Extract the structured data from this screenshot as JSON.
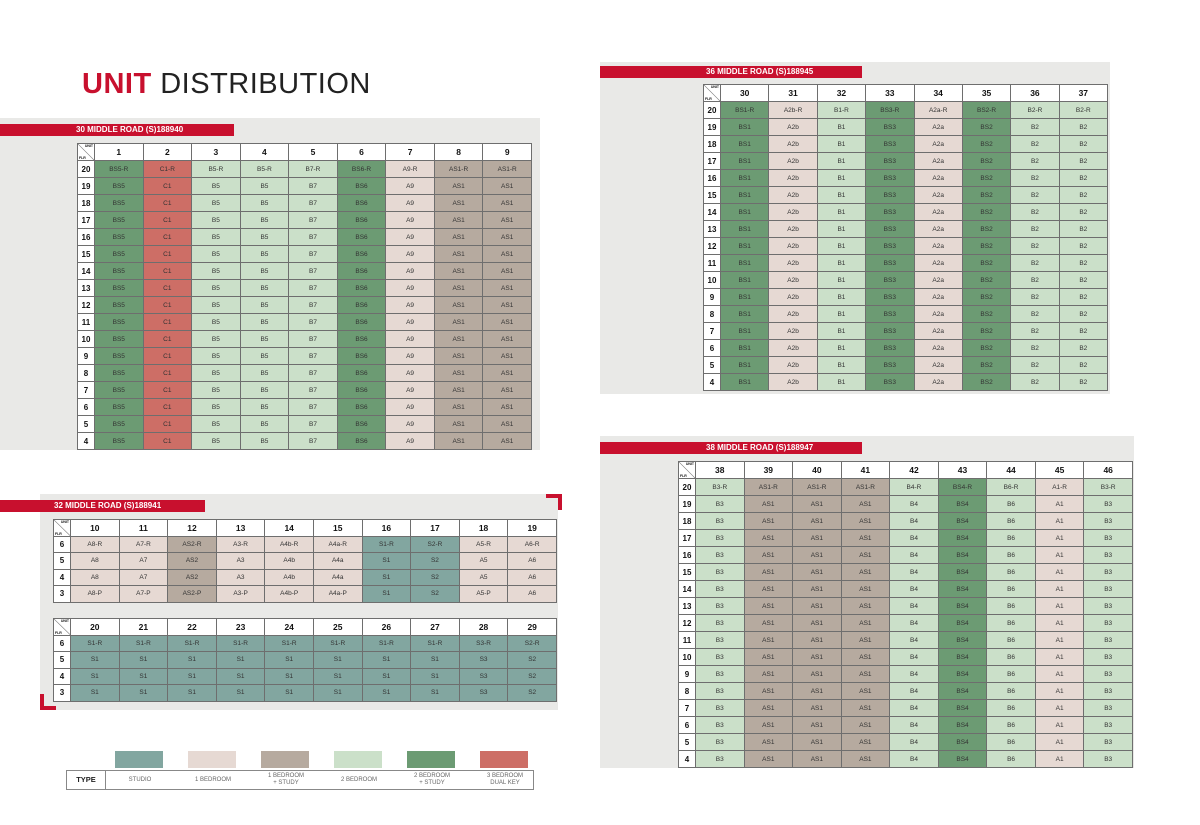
{
  "page": {
    "title_bold": "UNIT",
    "title_rest": "DISTRIBUTION"
  },
  "header_labels": {
    "unit": "UNIT",
    "flr": "FLR"
  },
  "legend": {
    "type_label": "TYPE",
    "items": [
      {
        "label": "STUDIO",
        "color": "#82a6a0"
      },
      {
        "label": "1 BEDROOM",
        "color": "#e6d9d3"
      },
      {
        "label": "1 BEDROOM\n+ STUDY",
        "color": "#b6aa9f"
      },
      {
        "label": "2 BEDROOM",
        "color": "#cbe0c9"
      },
      {
        "label": "2 BEDROOM\n+ STUDY",
        "color": "#6c9b73"
      },
      {
        "label": "3 BEDROOM\nDUAL KEY",
        "color": "#cd6e66"
      }
    ]
  },
  "blocks": [
    {
      "id": "30-middle-road",
      "label": "30 MIDDLE ROAD (S)188940",
      "units": [
        "1",
        "2",
        "3",
        "4",
        "5",
        "6",
        "7",
        "8",
        "9"
      ],
      "unit_types": [
        "twostudy",
        "three",
        "two",
        "two",
        "two",
        "twostudy",
        "one",
        "onestudy",
        "onestudy"
      ],
      "rows": [
        {
          "floor": "20",
          "cells": [
            "BS5-R",
            "C1-R",
            "B5-R",
            "B5-R",
            "B7-R",
            "BS6-R",
            "A9-R",
            "AS1-R",
            "AS1-R"
          ]
        },
        {
          "floor": "19",
          "cells": [
            "BS5",
            "C1",
            "B5",
            "B5",
            "B7",
            "BS6",
            "A9",
            "AS1",
            "AS1"
          ]
        },
        {
          "floor": "18",
          "cells": [
            "BS5",
            "C1",
            "B5",
            "B5",
            "B7",
            "BS6",
            "A9",
            "AS1",
            "AS1"
          ]
        },
        {
          "floor": "17",
          "cells": [
            "BS5",
            "C1",
            "B5",
            "B5",
            "B7",
            "BS6",
            "A9",
            "AS1",
            "AS1"
          ]
        },
        {
          "floor": "16",
          "cells": [
            "BS5",
            "C1",
            "B5",
            "B5",
            "B7",
            "BS6",
            "A9",
            "AS1",
            "AS1"
          ]
        },
        {
          "floor": "15",
          "cells": [
            "BS5",
            "C1",
            "B5",
            "B5",
            "B7",
            "BS6",
            "A9",
            "AS1",
            "AS1"
          ]
        },
        {
          "floor": "14",
          "cells": [
            "BS5",
            "C1",
            "B5",
            "B5",
            "B7",
            "BS6",
            "A9",
            "AS1",
            "AS1"
          ]
        },
        {
          "floor": "13",
          "cells": [
            "BS5",
            "C1",
            "B5",
            "B5",
            "B7",
            "BS6",
            "A9",
            "AS1",
            "AS1"
          ]
        },
        {
          "floor": "12",
          "cells": [
            "BS5",
            "C1",
            "B5",
            "B5",
            "B7",
            "BS6",
            "A9",
            "AS1",
            "AS1"
          ]
        },
        {
          "floor": "11",
          "cells": [
            "BS5",
            "C1",
            "B5",
            "B5",
            "B7",
            "BS6",
            "A9",
            "AS1",
            "AS1"
          ]
        },
        {
          "floor": "10",
          "cells": [
            "BS5",
            "C1",
            "B5",
            "B5",
            "B7",
            "BS6",
            "A9",
            "AS1",
            "AS1"
          ]
        },
        {
          "floor": "9",
          "cells": [
            "BS5",
            "C1",
            "B5",
            "B5",
            "B7",
            "BS6",
            "A9",
            "AS1",
            "AS1"
          ]
        },
        {
          "floor": "8",
          "cells": [
            "BS5",
            "C1",
            "B5",
            "B5",
            "B7",
            "BS6",
            "A9",
            "AS1",
            "AS1"
          ]
        },
        {
          "floor": "7",
          "cells": [
            "BS5",
            "C1",
            "B5",
            "B5",
            "B7",
            "BS6",
            "A9",
            "AS1",
            "AS1"
          ]
        },
        {
          "floor": "6",
          "cells": [
            "BS5",
            "C1",
            "B5",
            "B5",
            "B7",
            "BS6",
            "A9",
            "AS1",
            "AS1"
          ]
        },
        {
          "floor": "5",
          "cells": [
            "BS5",
            "C1",
            "B5",
            "B5",
            "B7",
            "BS6",
            "A9",
            "AS1",
            "AS1"
          ]
        },
        {
          "floor": "4",
          "cells": [
            "BS5",
            "C1",
            "B5",
            "B5",
            "B7",
            "BS6",
            "A9",
            "AS1",
            "AS1"
          ]
        }
      ]
    },
    {
      "id": "32-middle-road-a",
      "label": "32 MIDDLE ROAD (S)188941",
      "units": [
        "10",
        "11",
        "12",
        "13",
        "14",
        "15",
        "16",
        "17",
        "18",
        "19"
      ],
      "unit_types": [
        "one",
        "one",
        "onestudy",
        "one",
        "one",
        "one",
        "studio",
        "studio",
        "one",
        "one"
      ],
      "rows": [
        {
          "floor": "6",
          "cells": [
            "A8-R",
            "A7-R",
            "AS2-R",
            "A3-R",
            "A4b-R",
            "A4a-R",
            "S1-R",
            "S2-R",
            "A5-R",
            "A6-R"
          ]
        },
        {
          "floor": "5",
          "cells": [
            "A8",
            "A7",
            "AS2",
            "A3",
            "A4b",
            "A4a",
            "S1",
            "S2",
            "A5",
            "A6"
          ]
        },
        {
          "floor": "4",
          "cells": [
            "A8",
            "A7",
            "AS2",
            "A3",
            "A4b",
            "A4a",
            "S1",
            "S2",
            "A5",
            "A6"
          ]
        },
        {
          "floor": "3",
          "cells": [
            "A8-P",
            "A7-P",
            "AS2-P",
            "A3-P",
            "A4b-P",
            "A4a-P",
            "S1",
            "S2",
            "A5-P",
            "A6"
          ]
        }
      ]
    },
    {
      "id": "32-middle-road-b",
      "label": "",
      "units": [
        "20",
        "21",
        "22",
        "23",
        "24",
        "25",
        "26",
        "27",
        "28",
        "29"
      ],
      "unit_types": [
        "studio",
        "studio",
        "studio",
        "studio",
        "studio",
        "studio",
        "studio",
        "studio",
        "studio",
        "studio"
      ],
      "rows": [
        {
          "floor": "6",
          "cells": [
            "S1-R",
            "S1-R",
            "S1-R",
            "S1-R",
            "S1-R",
            "S1-R",
            "S1-R",
            "S1-R",
            "S3-R",
            "S2-R"
          ]
        },
        {
          "floor": "5",
          "cells": [
            "S1",
            "S1",
            "S1",
            "S1",
            "S1",
            "S1",
            "S1",
            "S1",
            "S3",
            "S2"
          ]
        },
        {
          "floor": "4",
          "cells": [
            "S1",
            "S1",
            "S1",
            "S1",
            "S1",
            "S1",
            "S1",
            "S1",
            "S3",
            "S2"
          ]
        },
        {
          "floor": "3",
          "cells": [
            "S1",
            "S1",
            "S1",
            "S1",
            "S1",
            "S1",
            "S1",
            "S1",
            "S3",
            "S2"
          ]
        }
      ]
    },
    {
      "id": "36-middle-road",
      "label": "36 MIDDLE ROAD (S)188945",
      "units": [
        "30",
        "31",
        "32",
        "33",
        "34",
        "35",
        "36",
        "37"
      ],
      "unit_types": [
        "twostudy",
        "one",
        "two",
        "twostudy",
        "one",
        "twostudy",
        "two",
        "two"
      ],
      "rows": [
        {
          "floor": "20",
          "cells": [
            "BS1-R",
            "A2b-R",
            "B1-R",
            "BS3-R",
            "A2a-R",
            "BS2-R",
            "B2-R",
            "B2-R"
          ]
        },
        {
          "floor": "19",
          "cells": [
            "BS1",
            "A2b",
            "B1",
            "BS3",
            "A2a",
            "BS2",
            "B2",
            "B2"
          ]
        },
        {
          "floor": "18",
          "cells": [
            "BS1",
            "A2b",
            "B1",
            "BS3",
            "A2a",
            "BS2",
            "B2",
            "B2"
          ]
        },
        {
          "floor": "17",
          "cells": [
            "BS1",
            "A2b",
            "B1",
            "BS3",
            "A2a",
            "BS2",
            "B2",
            "B2"
          ]
        },
        {
          "floor": "16",
          "cells": [
            "BS1",
            "A2b",
            "B1",
            "BS3",
            "A2a",
            "BS2",
            "B2",
            "B2"
          ]
        },
        {
          "floor": "15",
          "cells": [
            "BS1",
            "A2b",
            "B1",
            "BS3",
            "A2a",
            "BS2",
            "B2",
            "B2"
          ]
        },
        {
          "floor": "14",
          "cells": [
            "BS1",
            "A2b",
            "B1",
            "BS3",
            "A2a",
            "BS2",
            "B2",
            "B2"
          ]
        },
        {
          "floor": "13",
          "cells": [
            "BS1",
            "A2b",
            "B1",
            "BS3",
            "A2a",
            "BS2",
            "B2",
            "B2"
          ]
        },
        {
          "floor": "12",
          "cells": [
            "BS1",
            "A2b",
            "B1",
            "BS3",
            "A2a",
            "BS2",
            "B2",
            "B2"
          ]
        },
        {
          "floor": "11",
          "cells": [
            "BS1",
            "A2b",
            "B1",
            "BS3",
            "A2a",
            "BS2",
            "B2",
            "B2"
          ]
        },
        {
          "floor": "10",
          "cells": [
            "BS1",
            "A2b",
            "B1",
            "BS3",
            "A2a",
            "BS2",
            "B2",
            "B2"
          ]
        },
        {
          "floor": "9",
          "cells": [
            "BS1",
            "A2b",
            "B1",
            "BS3",
            "A2a",
            "BS2",
            "B2",
            "B2"
          ]
        },
        {
          "floor": "8",
          "cells": [
            "BS1",
            "A2b",
            "B1",
            "BS3",
            "A2a",
            "BS2",
            "B2",
            "B2"
          ]
        },
        {
          "floor": "7",
          "cells": [
            "BS1",
            "A2b",
            "B1",
            "BS3",
            "A2a",
            "BS2",
            "B2",
            "B2"
          ]
        },
        {
          "floor": "6",
          "cells": [
            "BS1",
            "A2b",
            "B1",
            "BS3",
            "A2a",
            "BS2",
            "B2",
            "B2"
          ]
        },
        {
          "floor": "5",
          "cells": [
            "BS1",
            "A2b",
            "B1",
            "BS3",
            "A2a",
            "BS2",
            "B2",
            "B2"
          ]
        },
        {
          "floor": "4",
          "cells": [
            "BS1",
            "A2b",
            "B1",
            "BS3",
            "A2a",
            "BS2",
            "B2",
            "B2"
          ]
        }
      ]
    },
    {
      "id": "38-middle-road",
      "label": "38 MIDDLE ROAD (S)188947",
      "units": [
        "38",
        "39",
        "40",
        "41",
        "42",
        "43",
        "44",
        "45",
        "46"
      ],
      "unit_types": [
        "two",
        "onestudy",
        "onestudy",
        "onestudy",
        "two",
        "twostudy",
        "two",
        "one",
        "two"
      ],
      "rows": [
        {
          "floor": "20",
          "cells": [
            "B3-R",
            "AS1-R",
            "AS1-R",
            "AS1-R",
            "B4-R",
            "BS4-R",
            "B6-R",
            "A1-R",
            "B3-R"
          ]
        },
        {
          "floor": "19",
          "cells": [
            "B3",
            "AS1",
            "AS1",
            "AS1",
            "B4",
            "BS4",
            "B6",
            "A1",
            "B3"
          ]
        },
        {
          "floor": "18",
          "cells": [
            "B3",
            "AS1",
            "AS1",
            "AS1",
            "B4",
            "BS4",
            "B6",
            "A1",
            "B3"
          ]
        },
        {
          "floor": "17",
          "cells": [
            "B3",
            "AS1",
            "AS1",
            "AS1",
            "B4",
            "BS4",
            "B6",
            "A1",
            "B3"
          ]
        },
        {
          "floor": "16",
          "cells": [
            "B3",
            "AS1",
            "AS1",
            "AS1",
            "B4",
            "BS4",
            "B6",
            "A1",
            "B3"
          ]
        },
        {
          "floor": "15",
          "cells": [
            "B3",
            "AS1",
            "AS1",
            "AS1",
            "B4",
            "BS4",
            "B6",
            "A1",
            "B3"
          ]
        },
        {
          "floor": "14",
          "cells": [
            "B3",
            "AS1",
            "AS1",
            "AS1",
            "B4",
            "BS4",
            "B6",
            "A1",
            "B3"
          ]
        },
        {
          "floor": "13",
          "cells": [
            "B3",
            "AS1",
            "AS1",
            "AS1",
            "B4",
            "BS4",
            "B6",
            "A1",
            "B3"
          ]
        },
        {
          "floor": "12",
          "cells": [
            "B3",
            "AS1",
            "AS1",
            "AS1",
            "B4",
            "BS4",
            "B6",
            "A1",
            "B3"
          ]
        },
        {
          "floor": "11",
          "cells": [
            "B3",
            "AS1",
            "AS1",
            "AS1",
            "B4",
            "BS4",
            "B6",
            "A1",
            "B3"
          ]
        },
        {
          "floor": "10",
          "cells": [
            "B3",
            "AS1",
            "AS1",
            "AS1",
            "B4",
            "BS4",
            "B6",
            "A1",
            "B3"
          ]
        },
        {
          "floor": "9",
          "cells": [
            "B3",
            "AS1",
            "AS1",
            "AS1",
            "B4",
            "BS4",
            "B6",
            "A1",
            "B3"
          ]
        },
        {
          "floor": "8",
          "cells": [
            "B3",
            "AS1",
            "AS1",
            "AS1",
            "B4",
            "BS4",
            "B6",
            "A1",
            "B3"
          ]
        },
        {
          "floor": "7",
          "cells": [
            "B3",
            "AS1",
            "AS1",
            "AS1",
            "B4",
            "BS4",
            "B6",
            "A1",
            "B3"
          ]
        },
        {
          "floor": "6",
          "cells": [
            "B3",
            "AS1",
            "AS1",
            "AS1",
            "B4",
            "BS4",
            "B6",
            "A1",
            "B3"
          ]
        },
        {
          "floor": "5",
          "cells": [
            "B3",
            "AS1",
            "AS1",
            "AS1",
            "B4",
            "BS4",
            "B6",
            "A1",
            "B3"
          ]
        },
        {
          "floor": "4",
          "cells": [
            "B3",
            "AS1",
            "AS1",
            "AS1",
            "B4",
            "BS4",
            "B6",
            "A1",
            "B3"
          ]
        }
      ]
    }
  ]
}
